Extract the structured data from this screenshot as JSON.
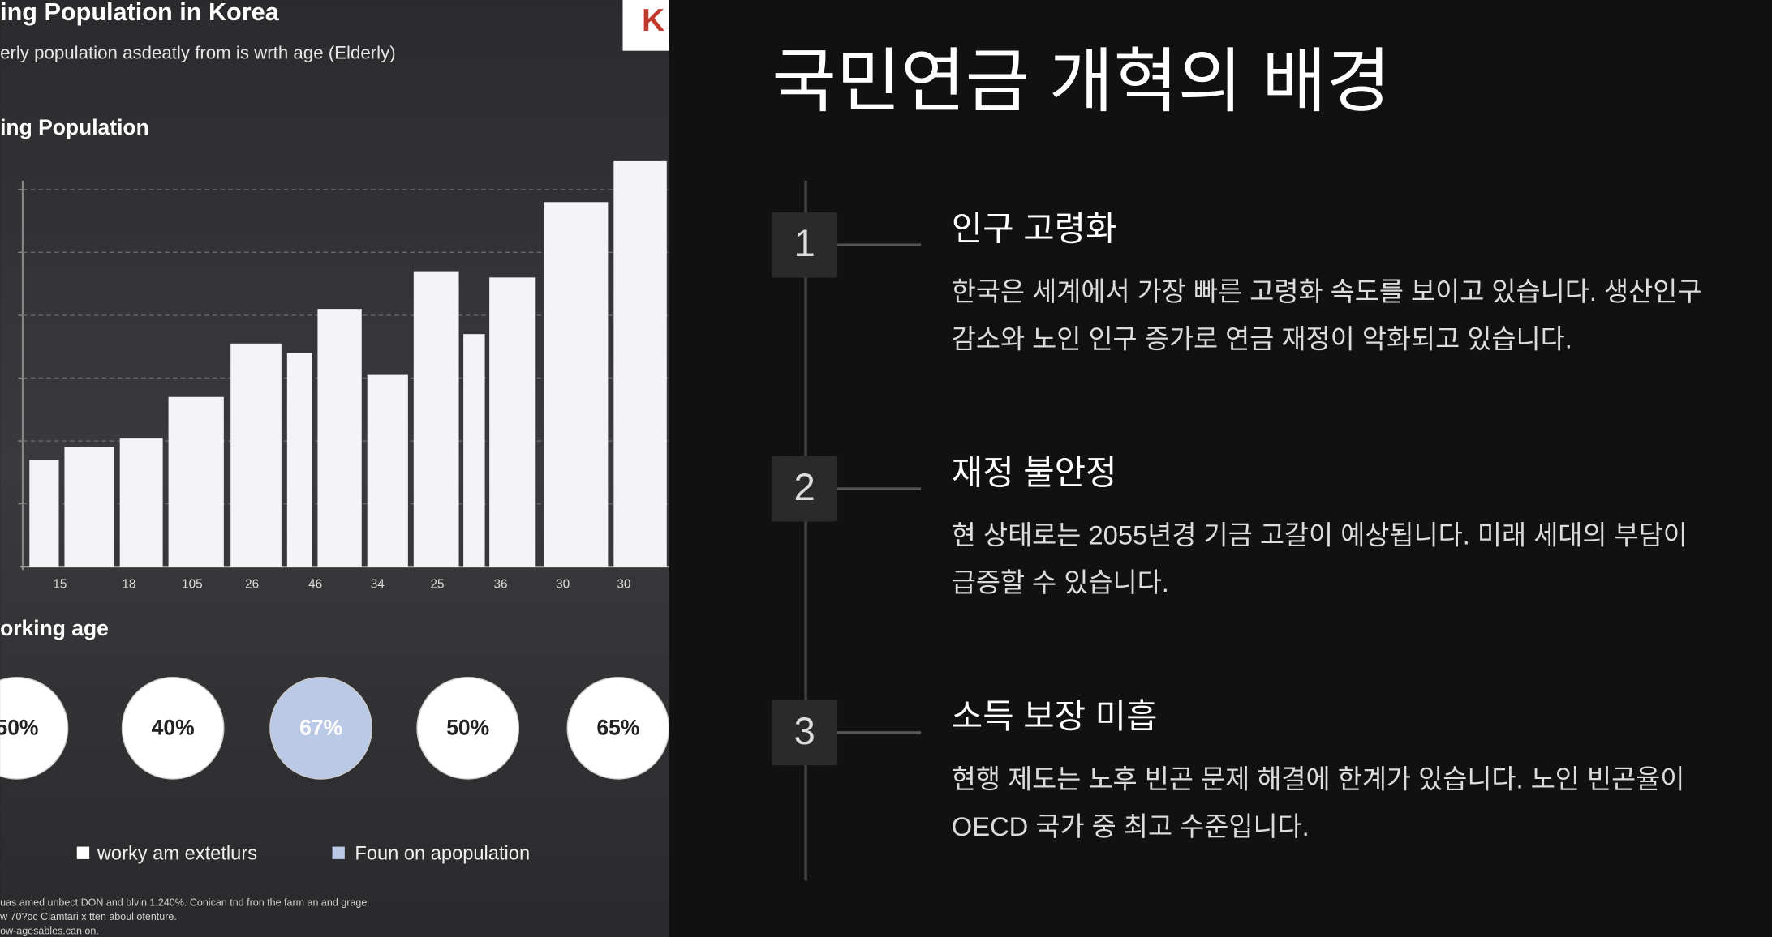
{
  "chart_data": {
    "type": "bar",
    "title": "ing Population",
    "categories": [
      "15",
      null,
      "18",
      "105",
      "26",
      null,
      "46",
      "34",
      "25",
      null,
      "36",
      "30",
      "30"
    ],
    "values": [
      1.7,
      1.9,
      2.05,
      2.7,
      3.55,
      3.4,
      4.1,
      3.05,
      4.7,
      3.7,
      4.6,
      5.8,
      6.45
    ],
    "color": "#f4f4f7",
    "ylim": [
      0,
      6.5
    ],
    "yticks": [
      1,
      2,
      3,
      4,
      5,
      6
    ],
    "grid": true
  },
  "chart_panel": {
    "logo": "K",
    "title": "ing Population in Korea",
    "subtitle": "erly population asdeatly from is wrth age (Elderly)",
    "section_title": "orking age",
    "working_age": {
      "values": [
        50,
        40,
        67,
        50,
        65
      ],
      "value_labels": [
        "50%",
        "40%",
        "67%",
        "50%",
        "65%"
      ],
      "colors": [
        "#ffffff",
        "#ffffff",
        "#b9c9e6",
        "#ffffff",
        "#ffffff"
      ]
    },
    "legend": [
      {
        "label": "worky am extetlurs",
        "color": "#ffffff"
      },
      {
        "label": "Foun on apopulation",
        "color": "#b9c9e6"
      }
    ],
    "footnotes": [
      "uas amed unbect DON and blvin 1.240%. Conican tnd fron the farm an and grage.",
      "w 70?oc Clamtari x tten aboul otenture.",
      "ow-agesables.can on."
    ]
  },
  "slide": {
    "title": "국민연금 개혁의 배경",
    "items": [
      {
        "number": 1,
        "heading": "인구 고령화",
        "body": [
          "한국은 세계에서 가장 빠른 고령화 속도를 보이고 있습니다. 생산인구",
          "감소와 노인 인구 증가로 연금 재정이 악화되고 있습니다."
        ]
      },
      {
        "number": 2,
        "heading": "재정 불안정",
        "body": [
          "현 상태로는 2055년경 기금 고갈이 예상됩니다. 미래 세대의 부담이",
          "급증할 수 있습니다."
        ]
      },
      {
        "number": 3,
        "heading": "소득 보장 미흡",
        "body": [
          "현행 제도는 노후 빈곤 문제 해결에 한계가 있습니다. 노인 빈곤율이",
          "OECD 국가 중 최고 수준입니다."
        ]
      }
    ]
  }
}
